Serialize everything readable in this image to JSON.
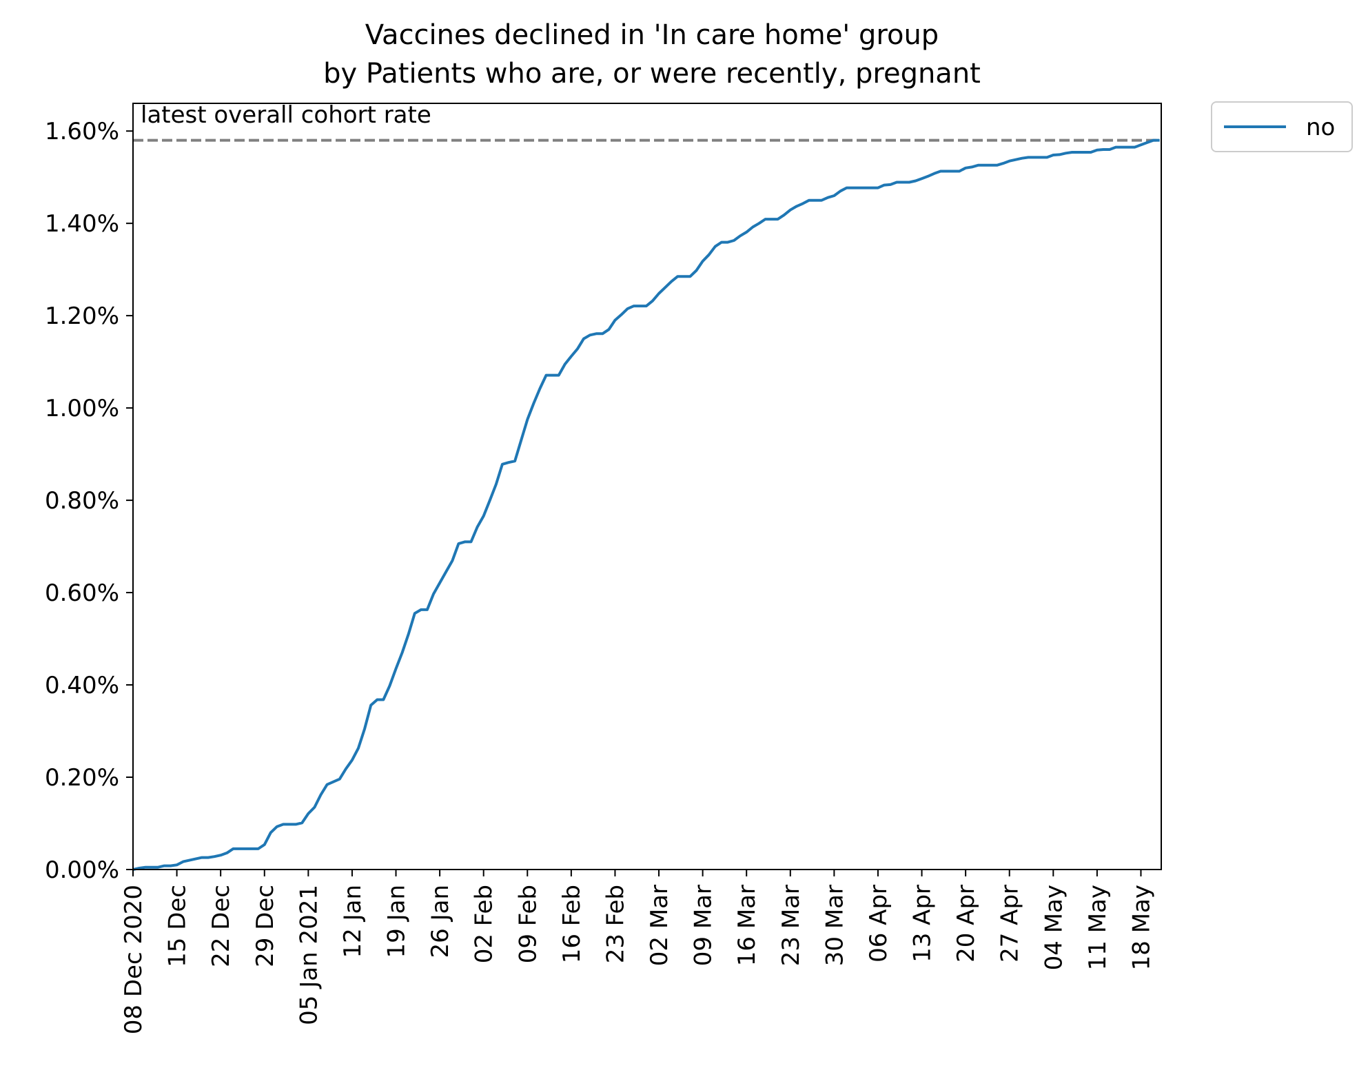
{
  "chart_data": {
    "type": "line",
    "title": "Vaccines declined in 'In care home' group",
    "subtitle": "by Patients who are, or were recently, pregnant",
    "xlabel": "",
    "ylabel": "",
    "ylim": [
      0,
      1.66
    ],
    "yticks": [
      0.0,
      0.2,
      0.4,
      0.6,
      0.8,
      1.0,
      1.2,
      1.4,
      1.6
    ],
    "ytick_labels": [
      "0.00%",
      "0.20%",
      "0.40%",
      "0.60%",
      "0.80%",
      "1.00%",
      "1.20%",
      "1.40%",
      "1.60%"
    ],
    "x_range": [
      "2020-12-08",
      "2021-05-21"
    ],
    "xticks": [
      "2020-12-08",
      "2020-12-15",
      "2020-12-22",
      "2020-12-29",
      "2021-01-05",
      "2021-01-12",
      "2021-01-19",
      "2021-01-26",
      "2021-02-02",
      "2021-02-09",
      "2021-02-16",
      "2021-02-23",
      "2021-03-02",
      "2021-03-09",
      "2021-03-16",
      "2021-03-23",
      "2021-03-30",
      "2021-04-06",
      "2021-04-13",
      "2021-04-20",
      "2021-04-27",
      "2021-05-04",
      "2021-05-11",
      "2021-05-18"
    ],
    "xtick_labels": [
      "08 Dec 2020",
      "15 Dec",
      "22 Dec",
      "29 Dec",
      "05 Jan 2021",
      "12 Jan",
      "19 Jan",
      "26 Jan",
      "02 Feb",
      "09 Feb",
      "16 Feb",
      "23 Feb",
      "02 Mar",
      "09 Mar",
      "16 Mar",
      "23 Mar",
      "30 Mar",
      "06 Apr",
      "13 Apr",
      "20 Apr",
      "27 Apr",
      "04 May",
      "11 May",
      "18 May"
    ],
    "grid": false,
    "legend_position": "outside-top-right",
    "reference_line": {
      "label": "latest overall cohort rate",
      "value": 1.58,
      "color": "#808080",
      "style": "dashed"
    },
    "series": [
      {
        "name": "no",
        "color": "#1f77b4",
        "points": [
          [
            "2020-12-08",
            0.0
          ],
          [
            "2020-12-09",
            0.003
          ],
          [
            "2020-12-10",
            0.005
          ],
          [
            "2020-12-11",
            0.005
          ],
          [
            "2020-12-12",
            0.005
          ],
          [
            "2020-12-13",
            0.008
          ],
          [
            "2020-12-14",
            0.008
          ],
          [
            "2020-12-15",
            0.01
          ],
          [
            "2020-12-16",
            0.017
          ],
          [
            "2020-12-17",
            0.02
          ],
          [
            "2020-12-18",
            0.023
          ],
          [
            "2020-12-19",
            0.026
          ],
          [
            "2020-12-20",
            0.026
          ],
          [
            "2020-12-21",
            0.028
          ],
          [
            "2020-12-22",
            0.031
          ],
          [
            "2020-12-23",
            0.036
          ],
          [
            "2020-12-24",
            0.045
          ],
          [
            "2020-12-25",
            0.045
          ],
          [
            "2020-12-26",
            0.045
          ],
          [
            "2020-12-27",
            0.045
          ],
          [
            "2020-12-28",
            0.045
          ],
          [
            "2020-12-29",
            0.054
          ],
          [
            "2020-12-30",
            0.08
          ],
          [
            "2020-12-31",
            0.093
          ],
          [
            "2021-01-01",
            0.098
          ],
          [
            "2021-01-02",
            0.098
          ],
          [
            "2021-01-03",
            0.098
          ],
          [
            "2021-01-04",
            0.101
          ],
          [
            "2021-01-05",
            0.121
          ],
          [
            "2021-01-06",
            0.135
          ],
          [
            "2021-01-07",
            0.162
          ],
          [
            "2021-01-08",
            0.184
          ],
          [
            "2021-01-09",
            0.19
          ],
          [
            "2021-01-10",
            0.196
          ],
          [
            "2021-01-11",
            0.218
          ],
          [
            "2021-01-12",
            0.237
          ],
          [
            "2021-01-13",
            0.263
          ],
          [
            "2021-01-14",
            0.305
          ],
          [
            "2021-01-15",
            0.356
          ],
          [
            "2021-01-16",
            0.368
          ],
          [
            "2021-01-17",
            0.368
          ],
          [
            "2021-01-18",
            0.398
          ],
          [
            "2021-01-19",
            0.435
          ],
          [
            "2021-01-20",
            0.47
          ],
          [
            "2021-01-21",
            0.51
          ],
          [
            "2021-01-22",
            0.555
          ],
          [
            "2021-01-23",
            0.563
          ],
          [
            "2021-01-24",
            0.563
          ],
          [
            "2021-01-25",
            0.597
          ],
          [
            "2021-01-26",
            0.621
          ],
          [
            "2021-01-27",
            0.645
          ],
          [
            "2021-01-28",
            0.669
          ],
          [
            "2021-01-29",
            0.706
          ],
          [
            "2021-01-30",
            0.71
          ],
          [
            "2021-01-31",
            0.71
          ],
          [
            "2021-02-01",
            0.742
          ],
          [
            "2021-02-02",
            0.766
          ],
          [
            "2021-02-03",
            0.8
          ],
          [
            "2021-02-04",
            0.835
          ],
          [
            "2021-02-05",
            0.878
          ],
          [
            "2021-02-06",
            0.882
          ],
          [
            "2021-02-07",
            0.885
          ],
          [
            "2021-02-08",
            0.93
          ],
          [
            "2021-02-09",
            0.975
          ],
          [
            "2021-02-10",
            1.01
          ],
          [
            "2021-02-11",
            1.042
          ],
          [
            "2021-02-12",
            1.071
          ],
          [
            "2021-02-13",
            1.071
          ],
          [
            "2021-02-14",
            1.071
          ],
          [
            "2021-02-15",
            1.095
          ],
          [
            "2021-02-16",
            1.112
          ],
          [
            "2021-02-17",
            1.128
          ],
          [
            "2021-02-18",
            1.15
          ],
          [
            "2021-02-19",
            1.158
          ],
          [
            "2021-02-20",
            1.161
          ],
          [
            "2021-02-21",
            1.161
          ],
          [
            "2021-02-22",
            1.17
          ],
          [
            "2021-02-23",
            1.19
          ],
          [
            "2021-02-24",
            1.202
          ],
          [
            "2021-02-25",
            1.215
          ],
          [
            "2021-02-26",
            1.221
          ],
          [
            "2021-02-27",
            1.221
          ],
          [
            "2021-02-28",
            1.221
          ],
          [
            "2021-03-01",
            1.232
          ],
          [
            "2021-03-02",
            1.248
          ],
          [
            "2021-03-03",
            1.261
          ],
          [
            "2021-03-04",
            1.274
          ],
          [
            "2021-03-05",
            1.285
          ],
          [
            "2021-03-06",
            1.285
          ],
          [
            "2021-03-07",
            1.285
          ],
          [
            "2021-03-08",
            1.298
          ],
          [
            "2021-03-09",
            1.318
          ],
          [
            "2021-03-10",
            1.332
          ],
          [
            "2021-03-11",
            1.35
          ],
          [
            "2021-03-12",
            1.359
          ],
          [
            "2021-03-13",
            1.359
          ],
          [
            "2021-03-14",
            1.363
          ],
          [
            "2021-03-15",
            1.373
          ],
          [
            "2021-03-16",
            1.381
          ],
          [
            "2021-03-17",
            1.392
          ],
          [
            "2021-03-18",
            1.4
          ],
          [
            "2021-03-19",
            1.409
          ],
          [
            "2021-03-20",
            1.409
          ],
          [
            "2021-03-21",
            1.409
          ],
          [
            "2021-03-22",
            1.418
          ],
          [
            "2021-03-23",
            1.429
          ],
          [
            "2021-03-24",
            1.437
          ],
          [
            "2021-03-25",
            1.443
          ],
          [
            "2021-03-26",
            1.45
          ],
          [
            "2021-03-27",
            1.45
          ],
          [
            "2021-03-28",
            1.45
          ],
          [
            "2021-03-29",
            1.456
          ],
          [
            "2021-03-30",
            1.46
          ],
          [
            "2021-03-31",
            1.47
          ],
          [
            "2021-04-01",
            1.477
          ],
          [
            "2021-04-02",
            1.477
          ],
          [
            "2021-04-03",
            1.477
          ],
          [
            "2021-04-04",
            1.477
          ],
          [
            "2021-04-05",
            1.477
          ],
          [
            "2021-04-06",
            1.477
          ],
          [
            "2021-04-07",
            1.483
          ],
          [
            "2021-04-08",
            1.484
          ],
          [
            "2021-04-09",
            1.489
          ],
          [
            "2021-04-10",
            1.489
          ],
          [
            "2021-04-11",
            1.489
          ],
          [
            "2021-04-12",
            1.492
          ],
          [
            "2021-04-13",
            1.497
          ],
          [
            "2021-04-14",
            1.502
          ],
          [
            "2021-04-15",
            1.508
          ],
          [
            "2021-04-16",
            1.513
          ],
          [
            "2021-04-17",
            1.513
          ],
          [
            "2021-04-18",
            1.513
          ],
          [
            "2021-04-19",
            1.513
          ],
          [
            "2021-04-20",
            1.52
          ],
          [
            "2021-04-21",
            1.522
          ],
          [
            "2021-04-22",
            1.526
          ],
          [
            "2021-04-23",
            1.526
          ],
          [
            "2021-04-24",
            1.526
          ],
          [
            "2021-04-25",
            1.526
          ],
          [
            "2021-04-26",
            1.53
          ],
          [
            "2021-04-27",
            1.535
          ],
          [
            "2021-04-28",
            1.538
          ],
          [
            "2021-04-29",
            1.541
          ],
          [
            "2021-04-30",
            1.543
          ],
          [
            "2021-05-01",
            1.543
          ],
          [
            "2021-05-02",
            1.543
          ],
          [
            "2021-05-03",
            1.543
          ],
          [
            "2021-05-04",
            1.548
          ],
          [
            "2021-05-05",
            1.549
          ],
          [
            "2021-05-06",
            1.552
          ],
          [
            "2021-05-07",
            1.554
          ],
          [
            "2021-05-08",
            1.554
          ],
          [
            "2021-05-09",
            1.554
          ],
          [
            "2021-05-10",
            1.554
          ],
          [
            "2021-05-11",
            1.559
          ],
          [
            "2021-05-12",
            1.56
          ],
          [
            "2021-05-13",
            1.56
          ],
          [
            "2021-05-14",
            1.565
          ],
          [
            "2021-05-15",
            1.565
          ],
          [
            "2021-05-16",
            1.565
          ],
          [
            "2021-05-17",
            1.565
          ],
          [
            "2021-05-18",
            1.57
          ],
          [
            "2021-05-19",
            1.575
          ],
          [
            "2021-05-20",
            1.58
          ],
          [
            "2021-05-21",
            1.58
          ]
        ]
      }
    ]
  }
}
